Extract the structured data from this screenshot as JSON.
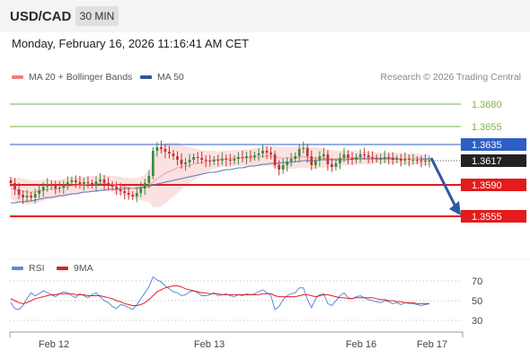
{
  "header": {
    "pair": "USD/CAD",
    "timeframe": "30 MIN"
  },
  "datetime": "Monday, February 16, 2026 11:16:41 AM CET",
  "legend": {
    "bollinger": {
      "label": "MA 20 + Bollinger Bands",
      "color": "#f08080"
    },
    "ma50": {
      "label": "MA 50",
      "color": "#2f5597"
    }
  },
  "credit": "Research © 2026 Trading Central",
  "rsi_legend": {
    "rsi": {
      "label": "RSI",
      "color": "#5b8bd9"
    },
    "ma9": {
      "label": "9MA",
      "color": "#e02020"
    }
  },
  "chart_data": [
    {
      "type": "candlestick",
      "ylim": [
        1.351,
        1.37
      ],
      "x_labels": [
        "Feb 12",
        "Feb 13",
        "Feb 16",
        "Feb 17"
      ],
      "last_price": 1.3617,
      "levels": [
        {
          "value": 1.368,
          "label": "1.3680",
          "kind": "target",
          "color": "#7ab648"
        },
        {
          "value": 1.3655,
          "label": "1.3655",
          "kind": "target",
          "color": "#7ab648"
        },
        {
          "value": 1.3635,
          "label": "1.3635",
          "kind": "pivot",
          "color": "#2e5fc4"
        },
        {
          "value": 1.359,
          "label": "1.3590",
          "kind": "support",
          "color": "#e31b1b"
        },
        {
          "value": 1.3555,
          "label": "1.3555",
          "kind": "support",
          "color": "#e31b1b"
        }
      ],
      "projection": {
        "from": 1.362,
        "to": 1.356,
        "direction": "down",
        "color": "#2a5aa0"
      },
      "closes": [
        1.3592,
        1.3585,
        1.3579,
        1.3576,
        1.3578,
        1.3576,
        1.358,
        1.3584,
        1.3588,
        1.3591,
        1.3589,
        1.3586,
        1.3587,
        1.359,
        1.3593,
        1.3595,
        1.3593,
        1.3591,
        1.3593,
        1.3592,
        1.359,
        1.3594,
        1.3596,
        1.3592,
        1.359,
        1.3588,
        1.3585,
        1.3583,
        1.3581,
        1.3579,
        1.3577,
        1.3581,
        1.3586,
        1.3592,
        1.36,
        1.3628,
        1.3632,
        1.363,
        1.3627,
        1.3625,
        1.3622,
        1.3618,
        1.3613,
        1.3615,
        1.3618,
        1.3621,
        1.362,
        1.3618,
        1.3617,
        1.3616,
        1.3618,
        1.3617,
        1.3619,
        1.3618,
        1.3617,
        1.3619,
        1.3621,
        1.362,
        1.3622,
        1.3621,
        1.3623,
        1.3625,
        1.3628,
        1.3626,
        1.3624,
        1.3612,
        1.3607,
        1.3612,
        1.3616,
        1.3619,
        1.3622,
        1.363,
        1.3631,
        1.3622,
        1.3612,
        1.3617,
        1.3622,
        1.3624,
        1.3613,
        1.361,
        1.3614,
        1.362,
        1.3624,
        1.362,
        1.3618,
        1.3621,
        1.3624,
        1.3623,
        1.3621,
        1.362,
        1.3619,
        1.3619,
        1.3621,
        1.362,
        1.3618,
        1.3619,
        1.3617,
        1.3619,
        1.3618,
        1.3618,
        1.3617,
        1.3616,
        1.3617,
        1.3617
      ],
      "ma20": [
        1.3586,
        1.3585,
        1.3584,
        1.3583,
        1.3582,
        1.3582,
        1.3582,
        1.3583,
        1.3584,
        1.3585,
        1.3585,
        1.3585,
        1.3586,
        1.3587,
        1.3588,
        1.3589,
        1.3589,
        1.359,
        1.359,
        1.3591,
        1.3591,
        1.3591,
        1.3592,
        1.3592,
        1.3591,
        1.3591,
        1.359,
        1.3589,
        1.3588,
        1.3587,
        1.3586,
        1.3586,
        1.3586,
        1.3587,
        1.3589,
        1.3593,
        1.3597,
        1.36,
        1.3603,
        1.3605,
        1.3607,
        1.3609,
        1.361,
        1.3611,
        1.3612,
        1.3613,
        1.3614,
        1.3615,
        1.3616,
        1.3617,
        1.3618,
        1.3618,
        1.3619,
        1.3619,
        1.3619,
        1.362,
        1.362,
        1.362,
        1.362,
        1.362,
        1.3621,
        1.3621,
        1.3622,
        1.3622,
        1.3622,
        1.3621,
        1.362,
        1.362,
        1.362,
        1.362,
        1.362,
        1.3621,
        1.3621,
        1.3621,
        1.362,
        1.362,
        1.362,
        1.362,
        1.3619,
        1.3619,
        1.3619,
        1.3619,
        1.362,
        1.362,
        1.362,
        1.362,
        1.362,
        1.362,
        1.362,
        1.362,
        1.362,
        1.362,
        1.362,
        1.362,
        1.362,
        1.362,
        1.3619,
        1.3619,
        1.3619,
        1.3619,
        1.3619,
        1.3618,
        1.3618,
        1.3618
      ],
      "ma50": [
        1.357,
        1.357,
        1.3571,
        1.3571,
        1.3572,
        1.3572,
        1.3573,
        1.3574,
        1.3575,
        1.3576,
        1.3576,
        1.3577,
        1.3578,
        1.3578,
        1.3579,
        1.358,
        1.358,
        1.3581,
        1.3582,
        1.3582,
        1.3583,
        1.3583,
        1.3584,
        1.3584,
        1.3585,
        1.3585,
        1.3585,
        1.3586,
        1.3586,
        1.3586,
        1.3586,
        1.3587,
        1.3587,
        1.3588,
        1.3588,
        1.359,
        1.3591,
        1.3592,
        1.3593,
        1.3594,
        1.3595,
        1.3596,
        1.3597,
        1.3598,
        1.3599,
        1.36,
        1.3601,
        1.3602,
        1.3603,
        1.3604,
        1.3604,
        1.3605,
        1.3606,
        1.3607,
        1.3607,
        1.3608,
        1.3609,
        1.3609,
        1.361,
        1.3611,
        1.3611,
        1.3612,
        1.3613,
        1.3613,
        1.3614,
        1.3614,
        1.3614,
        1.3615,
        1.3615,
        1.3615,
        1.3616,
        1.3616,
        1.3617,
        1.3617,
        1.3617,
        1.3617,
        1.3618,
        1.3618,
        1.3618,
        1.3618,
        1.3618,
        1.3618,
        1.3618,
        1.3618,
        1.3619,
        1.3619,
        1.3619,
        1.3619,
        1.3619,
        1.3619,
        1.3619,
        1.3619,
        1.3619,
        1.3619,
        1.3619,
        1.3619,
        1.3619,
        1.3619,
        1.3619,
        1.3619,
        1.3619,
        1.3619,
        1.3619,
        1.3619
      ],
      "bb_width": [
        0.0012,
        0.0013,
        0.0014,
        0.0014,
        0.0014,
        0.0013,
        0.0013,
        0.0012,
        0.0012,
        0.0011,
        0.0011,
        0.001,
        0.001,
        0.001,
        0.001,
        0.001,
        0.0009,
        0.0009,
        0.0009,
        0.0009,
        0.0009,
        0.0009,
        0.0009,
        0.0009,
        0.0009,
        0.0009,
        0.001,
        0.001,
        0.001,
        0.0011,
        0.0011,
        0.0012,
        0.0013,
        0.0015,
        0.0018,
        0.0028,
        0.0032,
        0.0034,
        0.0034,
        0.0032,
        0.003,
        0.0028,
        0.0025,
        0.0022,
        0.002,
        0.0018,
        0.0016,
        0.0014,
        0.0012,
        0.0011,
        0.001,
        0.0009,
        0.0009,
        0.0009,
        0.0009,
        0.0009,
        0.0009,
        0.0009,
        0.001,
        0.001,
        0.001,
        0.001,
        0.0011,
        0.0011,
        0.0011,
        0.0012,
        0.0012,
        0.0012,
        0.0012,
        0.0012,
        0.0012,
        0.0012,
        0.0012,
        0.0012,
        0.0012,
        0.0012,
        0.0011,
        0.0011,
        0.001,
        0.001,
        0.0009,
        0.0009,
        0.0008,
        0.0008,
        0.0008,
        0.0008,
        0.0007,
        0.0007,
        0.0007,
        0.0007,
        0.0006,
        0.0006,
        0.0006,
        0.0006,
        0.0006,
        0.0006,
        0.0006,
        0.0006,
        0.0006,
        0.0006,
        0.0006,
        0.0006,
        0.0006,
        0.0006
      ]
    },
    {
      "type": "line",
      "title": "RSI",
      "ylim": [
        20,
        80
      ],
      "ticks": [
        70,
        50,
        30
      ],
      "rsi": [
        48,
        42,
        41,
        45,
        52,
        58,
        55,
        57,
        60,
        58,
        56,
        54,
        57,
        59,
        58,
        55,
        53,
        57,
        55,
        53,
        56,
        58,
        54,
        50,
        48,
        44,
        42,
        46,
        45,
        43,
        41,
        46,
        52,
        58,
        64,
        74,
        71,
        69,
        65,
        62,
        59,
        58,
        55,
        56,
        59,
        60,
        58,
        55,
        55,
        56,
        58,
        55,
        56,
        57,
        55,
        54,
        56,
        55,
        57,
        56,
        57,
        59,
        61,
        58,
        55,
        41,
        44,
        51,
        55,
        57,
        58,
        63,
        63,
        51,
        43,
        52,
        56,
        57,
        47,
        45,
        50,
        55,
        58,
        53,
        52,
        54,
        55,
        53,
        51,
        50,
        49,
        48,
        50,
        49,
        47,
        48,
        46,
        48,
        47,
        47,
        46,
        45,
        46,
        47
      ],
      "ma9": [
        52,
        50,
        48,
        47,
        48,
        50,
        52,
        53,
        54,
        55,
        56,
        56,
        57,
        57,
        57,
        57,
        56,
        56,
        56,
        55,
        55,
        55,
        55,
        54,
        53,
        52,
        50,
        49,
        47,
        46,
        45,
        45,
        46,
        48,
        51,
        55,
        59,
        61,
        63,
        64,
        65,
        65,
        64,
        62,
        61,
        60,
        59,
        58,
        58,
        57,
        57,
        57,
        56,
        56,
        56,
        56,
        56,
        56,
        56,
        56,
        56,
        56,
        57,
        57,
        57,
        55,
        54,
        54,
        54,
        54,
        54,
        55,
        56,
        56,
        55,
        54,
        55,
        56,
        56,
        55,
        54,
        53,
        53,
        52,
        52,
        53,
        53,
        53,
        53,
        53,
        52,
        51,
        51,
        50,
        50,
        49,
        49,
        48,
        48,
        48,
        47,
        47,
        47,
        47
      ]
    }
  ]
}
